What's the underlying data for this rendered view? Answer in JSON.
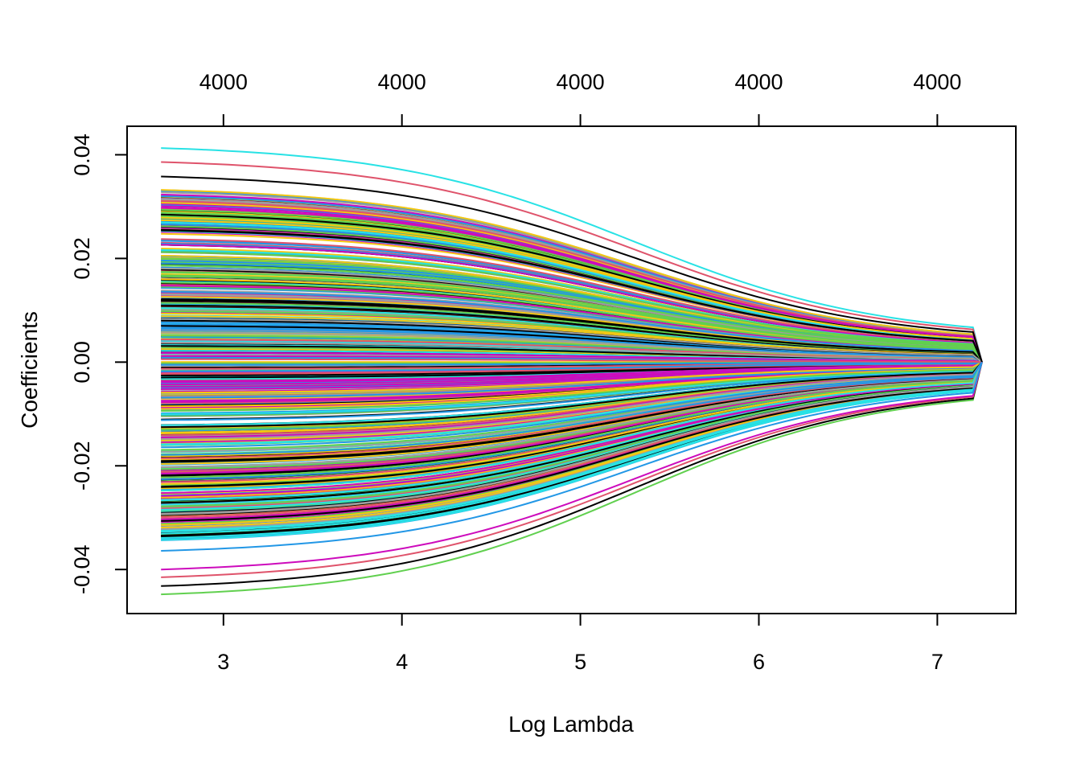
{
  "chart_data": {
    "type": "line",
    "title": "",
    "xlabel": "Log Lambda",
    "ylabel": "Coefficients",
    "xlim": [
      2.46,
      7.44
    ],
    "ylim": [
      -0.0485,
      0.0455
    ],
    "x_ticks": [
      3,
      4,
      5,
      6,
      7
    ],
    "x_tick_labels": [
      "3",
      "4",
      "5",
      "6",
      "7"
    ],
    "y_ticks": [
      -0.04,
      -0.02,
      0.0,
      0.02,
      0.04
    ],
    "y_tick_labels": [
      "-0.04",
      "-0.02",
      "0.00",
      "0.02",
      "0.04"
    ],
    "top_axis": {
      "ticks": [
        3,
        4,
        5,
        6,
        7
      ],
      "labels": [
        "4000",
        "4000",
        "4000",
        "4000",
        "4000"
      ]
    },
    "grid": false,
    "legend": "none",
    "x_range": [
      2.65,
      7.25
    ],
    "palette": [
      "#000000",
      "#DF536B",
      "#61D04F",
      "#2297E6",
      "#28E2E5",
      "#CD0BBC",
      "#F5C710",
      "#9E9E9E"
    ],
    "highlighted_series": [
      {
        "name": "",
        "start": 0.0413,
        "end": 0.0067,
        "color": "#28E2E5"
      },
      {
        "name": "",
        "start": 0.0386,
        "end": 0.0063,
        "color": "#DF536B"
      },
      {
        "name": "",
        "start": 0.0358,
        "end": 0.0058,
        "color": "#000000"
      },
      {
        "name": "",
        "start": -0.0448,
        "end": -0.0073,
        "color": "#61D04F"
      },
      {
        "name": "",
        "start": -0.0432,
        "end": -0.007,
        "color": "#000000"
      },
      {
        "name": "",
        "start": -0.0415,
        "end": -0.0067,
        "color": "#DF536B"
      },
      {
        "name": "",
        "start": -0.04,
        "end": -0.0065,
        "color": "#CD0BBC"
      },
      {
        "name": "",
        "start": -0.0364,
        "end": -0.0059,
        "color": "#2297E6"
      }
    ],
    "bulk_series": {
      "count": 600,
      "start_range": [
        -0.0345,
        0.0335
      ],
      "end_ratio": 0.162,
      "description_of_shape": "sigmoid shrink toward zero, final drop to 0 at x=7.25"
    }
  }
}
